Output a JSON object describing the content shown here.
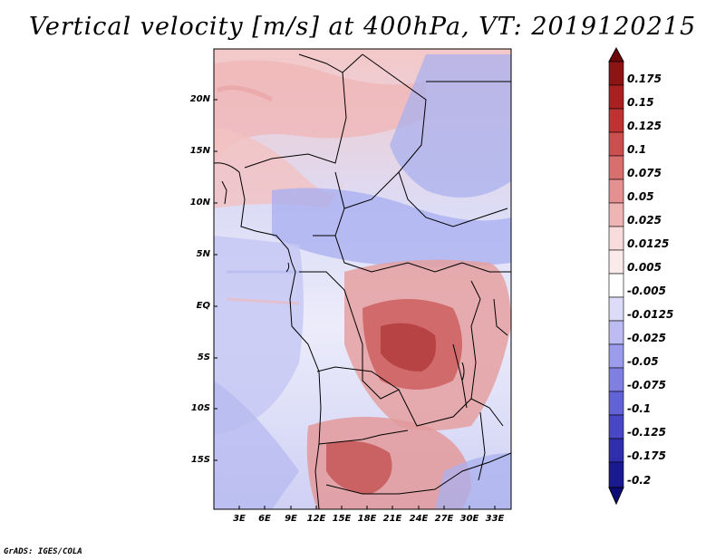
{
  "title": "Vertical velocity [m/s] at 400hPa, VT: 2019120215",
  "footer": "GrADS: IGES/COLA",
  "map": {
    "lat_labels": [
      "20N",
      "15N",
      "10N",
      "5N",
      "EQ",
      "5S",
      "10S",
      "15S"
    ],
    "lon_labels": [
      "3E",
      "6E",
      "9E",
      "12E",
      "15E",
      "18E",
      "21E",
      "24E",
      "27E",
      "30E",
      "33E"
    ]
  },
  "colorbar": {
    "labels": [
      "0.175",
      "0.15",
      "0.125",
      "0.1",
      "0.075",
      "0.05",
      "0.025",
      "0.0125",
      "0.005",
      "-0.005",
      "-0.0125",
      "-0.025",
      "-0.05",
      "-0.075",
      "-0.1",
      "-0.125",
      "-0.175",
      "-0.2"
    ],
    "colors": [
      "#6e0a0a",
      "#8c1414",
      "#a82020",
      "#be3232",
      "#cc4f4f",
      "#d86e6e",
      "#e49090",
      "#efb4b4",
      "#f8dcdc",
      "#ffffff",
      "#dcdcf8",
      "#bcbcf2",
      "#9c9cec",
      "#7f7fe2",
      "#6363d8",
      "#4848c6",
      "#2f2fae",
      "#1a1a90",
      "#0c0c78"
    ]
  }
}
